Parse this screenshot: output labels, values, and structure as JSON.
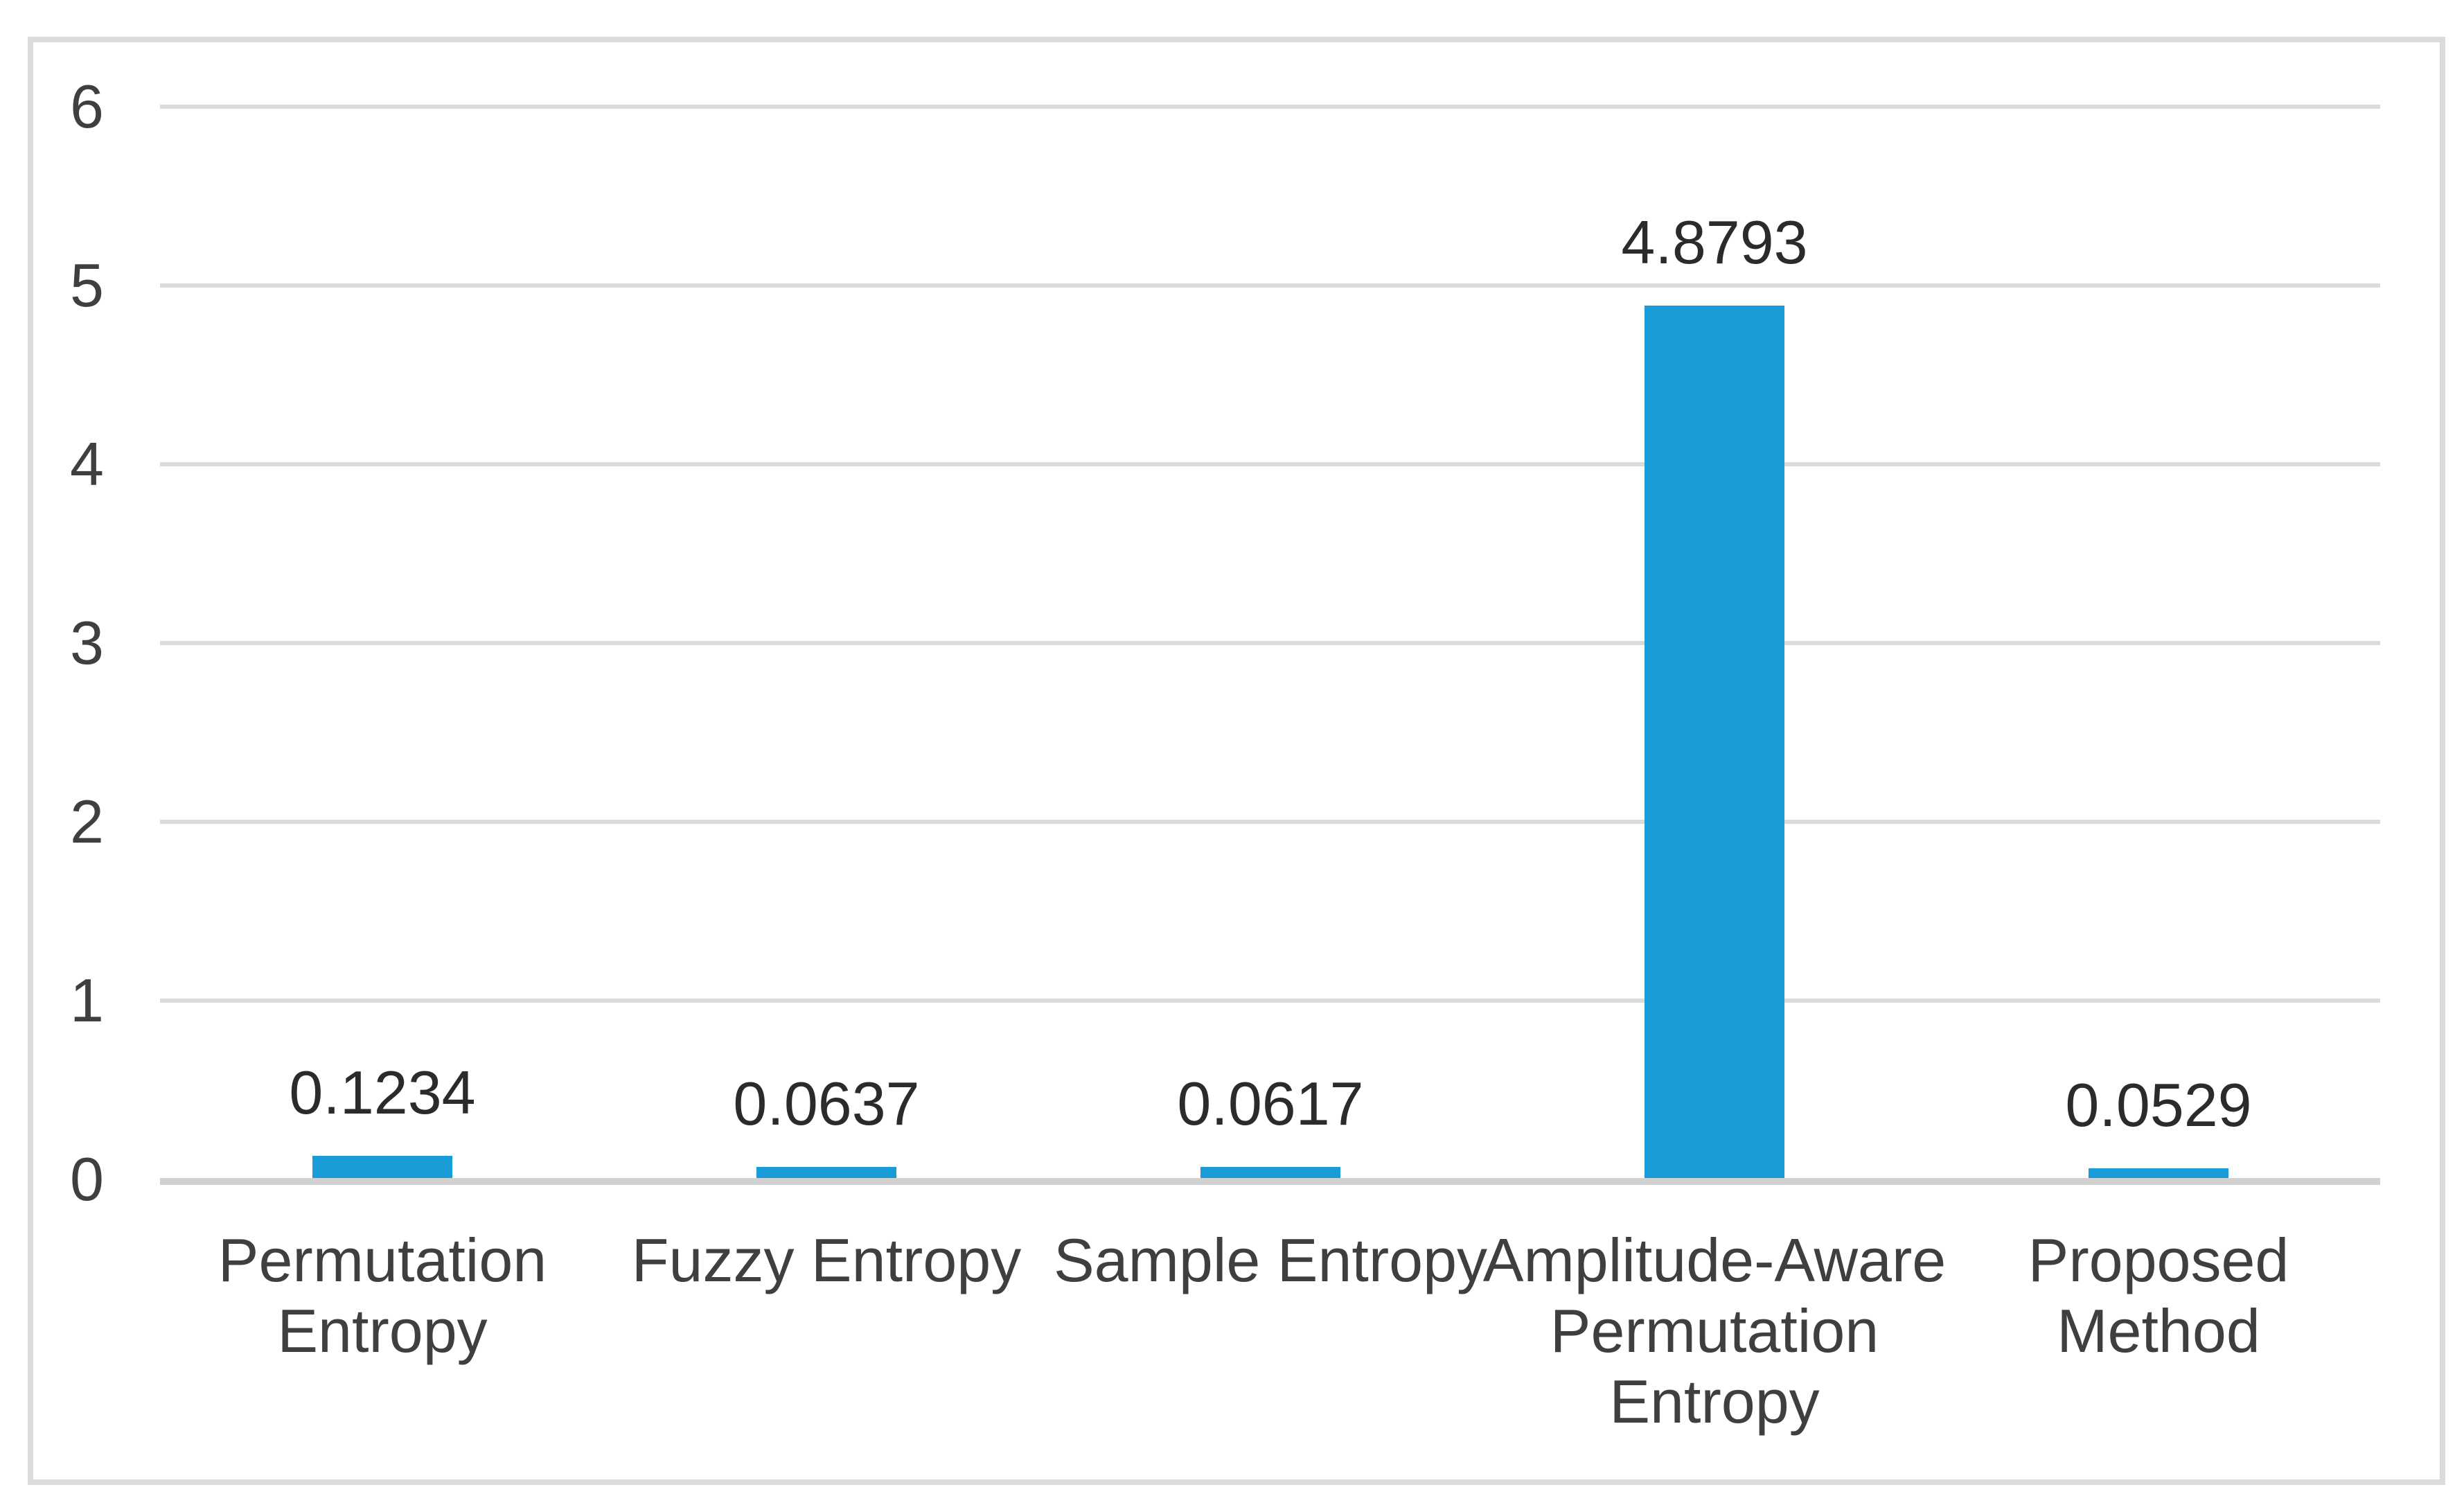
{
  "chart_data": {
    "type": "bar",
    "title": "",
    "xlabel": "",
    "ylabel": "",
    "categories": [
      "Permutation Entropy",
      "Fuzzy Entropy",
      "Sample Entropy",
      "Amplitude-Aware Permutation Entropy",
      "Proposed Method"
    ],
    "category_label_lines": [
      [
        "Permutation",
        "Entropy"
      ],
      [
        "Fuzzy Entropy"
      ],
      [
        "Sample Entropy"
      ],
      [
        "Amplitude-Aware",
        "Permutation",
        "Entropy"
      ],
      [
        "Proposed",
        "Method"
      ]
    ],
    "values": [
      0.1234,
      0.0637,
      0.0617,
      4.8793,
      0.0529
    ],
    "data_labels": [
      "0.1234",
      "0.0637",
      "0.0617",
      "4.8793",
      "0.0529"
    ],
    "y_ticks": [
      0,
      1,
      2,
      3,
      4,
      5,
      6
    ],
    "ylim": [
      0,
      6
    ],
    "grid": "horizontal",
    "legend": "none",
    "colors": {
      "bar": "#1A9CD8",
      "gridline": "#DBDBDB",
      "axis_line": "#D1D1D1",
      "frame_border": "#DBDBDB",
      "tick_text": "#3F3F3F",
      "category_text": "#3F3F3F",
      "data_label_text": "#2B2B2B",
      "background": "#FFFFFF"
    }
  }
}
